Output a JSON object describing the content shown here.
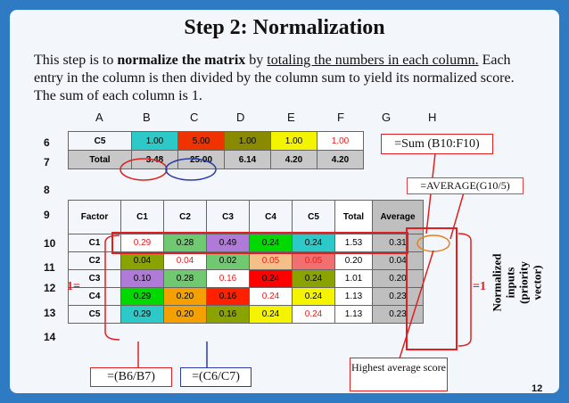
{
  "title": "Step 2: Normalization",
  "intro": {
    "p1": "This step is to ",
    "b1": "normalize the matrix",
    "p2": " by ",
    "u1": "totaling the numbers in each column.",
    "p3": " Each entry in the column is then divided by the column sum to yield its normalized score. The sum of each column is 1."
  },
  "columns": [
    "A",
    "B",
    "C",
    "D",
    "E",
    "F",
    "G",
    "H"
  ],
  "rows_top": [
    {
      "num": "6",
      "cells": [
        "C5",
        "1.00",
        "5.00",
        "1.00",
        "1.00",
        "1.00"
      ]
    },
    {
      "num": "7",
      "cells": [
        "Total",
        "3.48",
        "25.00",
        "6.14",
        "4.20",
        "4.20"
      ]
    }
  ],
  "row_numbers_bottom": [
    "8",
    "9",
    "10",
    "11",
    "12",
    "13",
    "14"
  ],
  "table_header": [
    "Factor",
    "C1",
    "C2",
    "C3",
    "C4",
    "C5",
    "Total",
    "Average"
  ],
  "rows": [
    {
      "factor": "C1",
      "values": [
        "0.29",
        "0.28",
        "0.49",
        "0.24",
        "0.24"
      ],
      "total": "1.53",
      "avg": "0.31"
    },
    {
      "factor": "C2",
      "values": [
        "0.04",
        "0.04",
        "0.02",
        "0.05",
        "0.05"
      ],
      "total": "0.20",
      "avg": "0.04"
    },
    {
      "factor": "C3",
      "values": [
        "0.10",
        "0.28",
        "0.16",
        "0.24",
        "0.24"
      ],
      "total": "1.01",
      "avg": "0.20"
    },
    {
      "factor": "C4",
      "values": [
        "0.29",
        "0.20",
        "0.16",
        "0.24",
        "0.24"
      ],
      "total": "1.13",
      "avg": "0.23"
    },
    {
      "factor": "C5",
      "values": [
        "0.29",
        "0.20",
        "0.16",
        "0.24",
        "0.24"
      ],
      "total": "1.13",
      "avg": "0.23"
    }
  ],
  "colors": {
    "top6": [
      "#ffffff",
      "#2dc9c9",
      "#ee3300",
      "#8a8a00",
      "#f4f400",
      "#ffffff"
    ],
    "top7": [
      "#c8c8c8",
      "#c8c8c8",
      "#c8c8c8",
      "#c8c8c8",
      "#c8c8c8",
      "#c8c8c8"
    ],
    "grid": [
      [
        "#ffffff",
        "#70c970",
        "#b07ad8",
        "#00d800",
        "#2dc9c9"
      ],
      [
        "#8aa300",
        "#ffffff",
        "#70c970",
        "#f4c088",
        "#f07070"
      ],
      [
        "#b07ad8",
        "#70c970",
        "#ffffff",
        "#ff0000",
        "#8aa300"
      ],
      [
        "#00d800",
        "#f4a000",
        "#ff2000",
        "#ffffff",
        "#f4f400"
      ],
      [
        "#2dc9c9",
        "#f4a000",
        "#8aa300",
        "#f4f400",
        "#ffffff"
      ]
    ]
  },
  "callouts": {
    "sum": "=Sum (B10:F10)",
    "average": "=AVERAGE(G10/5)",
    "div1": "=(B6/B7)",
    "div2": "=(C6/C7)",
    "highest": "Highest average score",
    "eq1_left": "1=",
    "eq1_right": "=1",
    "vertical_label": "Normalized inputs (priority vector)"
  },
  "page_number": "12"
}
